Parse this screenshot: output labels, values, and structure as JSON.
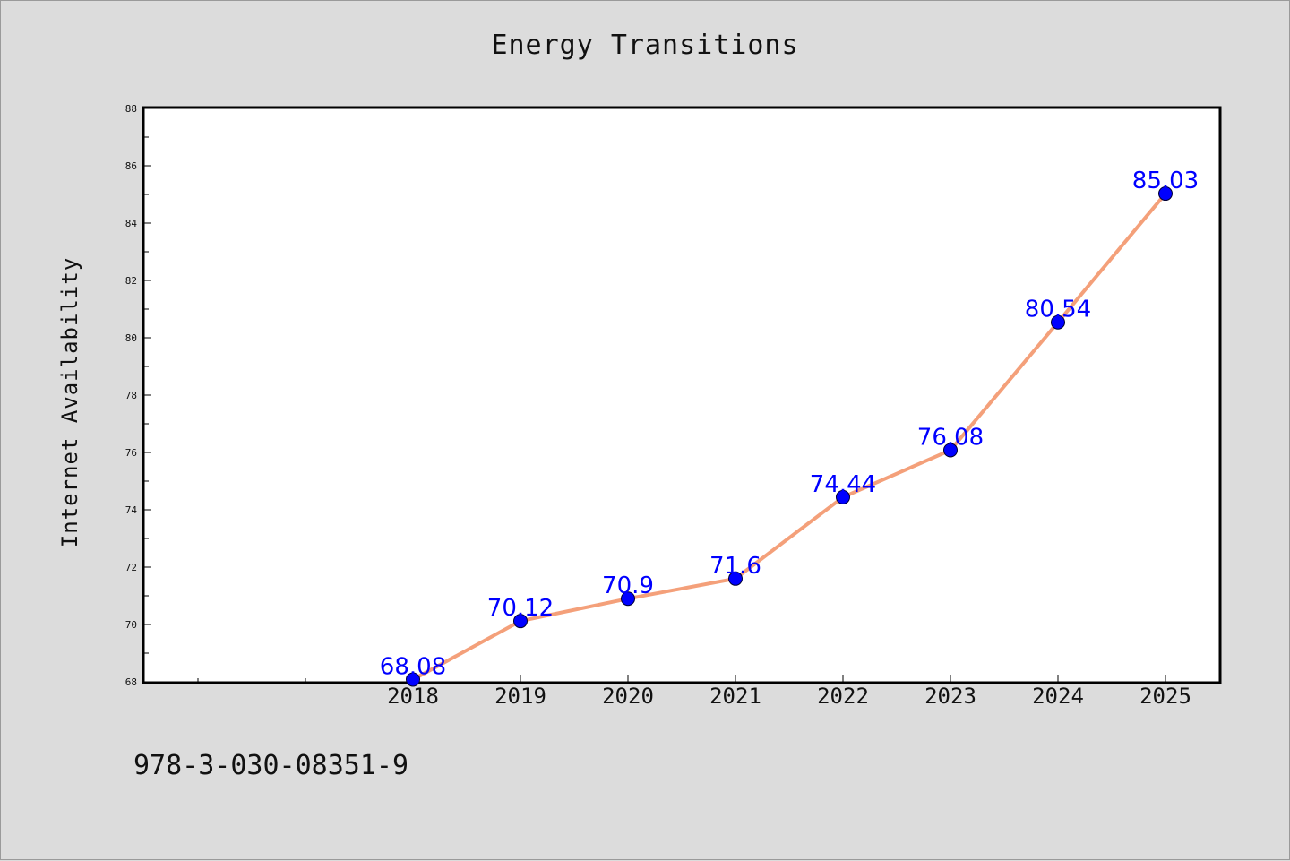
{
  "chart_data": {
    "type": "line",
    "title": "Energy Transitions",
    "xlabel": "",
    "ylabel": "Internet Availability",
    "categories": [
      "2018",
      "2019",
      "2020",
      "2021",
      "2022",
      "2023",
      "2024",
      "2025"
    ],
    "series": [
      {
        "values": [
          68.08,
          70.12,
          70.9,
          71.6,
          74.44,
          76.08,
          80.54,
          85.03
        ],
        "labels": [
          "68.08",
          "70.12",
          "70.9",
          "71.6",
          "74.44",
          "76.08",
          "80.54",
          "85.03"
        ]
      }
    ],
    "ylim": [
      68,
      88
    ],
    "yticks": [
      "68",
      "70",
      "72",
      "74",
      "76",
      "78",
      "80",
      "82",
      "84",
      "86",
      "88"
    ],
    "grid": false,
    "legend": "none"
  },
  "colors": {
    "line": "#f4a07a",
    "marker": "#0000ff",
    "data_label": "#0000ff",
    "background": "#dcdcdc",
    "plot_area": "#ffffff"
  },
  "footer": {
    "isbn": "978-3-030-08351-9"
  }
}
